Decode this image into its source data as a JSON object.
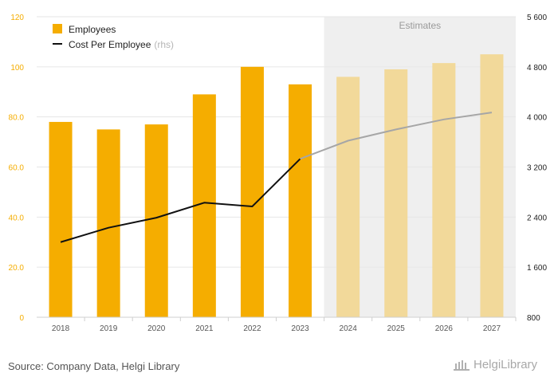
{
  "chart_data": {
    "type": "bar+line",
    "categories": [
      "2018",
      "2019",
      "2020",
      "2021",
      "2022",
      "2023",
      "2024",
      "2025",
      "2026",
      "2027"
    ],
    "estimates_label": "Estimates",
    "estimate_start": "2024",
    "series": [
      {
        "name": "Employees",
        "type": "bar",
        "axis": "left",
        "color": "#f5ad00",
        "estimate_color": "#f2d99a",
        "values": [
          78,
          75,
          77,
          89,
          100,
          93,
          96,
          99,
          101.5,
          105
        ]
      },
      {
        "name": "Cost Per Employee",
        "name_suffix": "(rhs)",
        "type": "line",
        "axis": "right",
        "color": "#111111",
        "estimate_color": "#a6a6a6",
        "values": [
          2000,
          2230,
          2390,
          2630,
          2570,
          3330,
          3620,
          3800,
          3960,
          4070
        ]
      }
    ],
    "y_left": {
      "min": 0,
      "max": 120,
      "ticks": [
        0,
        20,
        40,
        60,
        80,
        100,
        120
      ],
      "tick_labels": [
        "0",
        "20.0",
        "40.0",
        "60.0",
        "80.0",
        "100",
        "120"
      ],
      "color": "#f5ad00"
    },
    "y_right": {
      "min": 800,
      "max": 5600,
      "ticks": [
        800,
        1600,
        2400,
        3200,
        4000,
        4800,
        5600
      ],
      "tick_labels": [
        "800",
        "1 600",
        "2 400",
        "3 200",
        "4 000",
        "4 800",
        "5 600"
      ]
    },
    "legend_position": "top-left",
    "grid": true
  },
  "footer": {
    "source": "Source: Company Data, Helgi Library",
    "logo": "HelgiLibrary"
  }
}
